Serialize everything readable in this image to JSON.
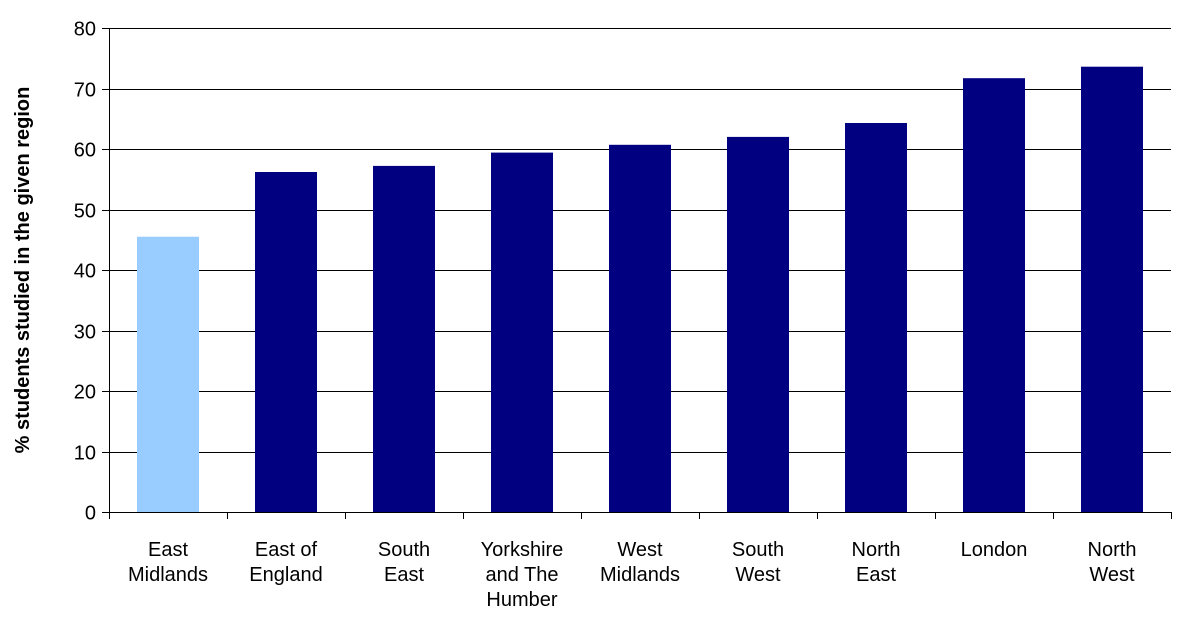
{
  "chart_data": {
    "type": "bar",
    "title": "",
    "xlabel": "",
    "ylabel": "% students studied in the given region",
    "ylim": [
      0,
      80
    ],
    "yticks": [
      0,
      10,
      20,
      30,
      40,
      50,
      60,
      70,
      80
    ],
    "grid": true,
    "legend": "none",
    "categories": [
      [
        "East",
        "Midlands"
      ],
      [
        "East of",
        "England"
      ],
      [
        "South",
        "East"
      ],
      [
        "Yorkshire",
        "and The",
        "Humber"
      ],
      [
        "West",
        "Midlands"
      ],
      [
        "South",
        "West"
      ],
      [
        "North",
        "East"
      ],
      [
        "London"
      ],
      [
        "North",
        "West"
      ]
    ],
    "values": [
      45.5,
      56.2,
      57.2,
      59.4,
      60.7,
      62.0,
      64.3,
      71.7,
      73.6
    ],
    "colors": {
      "highlight": "#99ccff",
      "default": "#000080",
      "axis": "#000000",
      "grid": "#000000"
    },
    "highlight_index": 0
  }
}
